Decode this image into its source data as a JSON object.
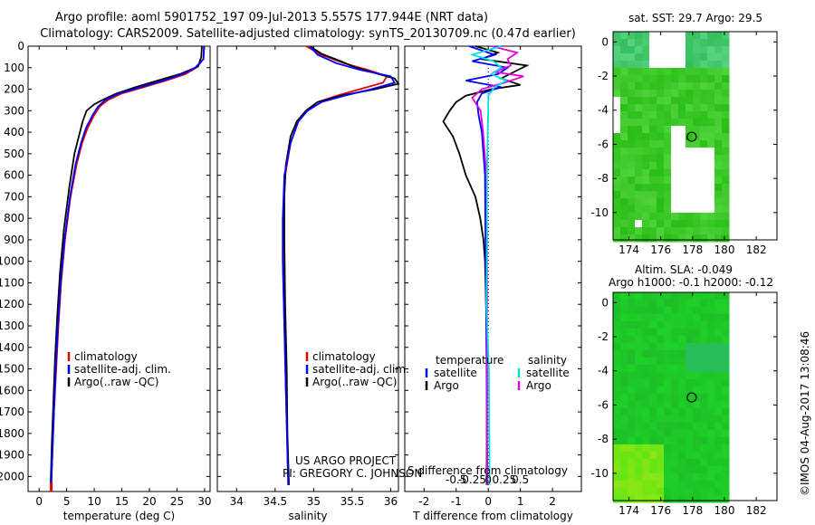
{
  "header": {
    "line1": "Argo profile: aoml 5901752_197 09-Jul-2013 5.557S 177.944E (NRT data)",
    "line2": "Climatology: CARS2009. Satellite-adjusted climatology: synTS_20130709.nc (0.47d earlier)"
  },
  "colors": {
    "climatology": "#e00000",
    "satellite": "#0000ff",
    "argo": "#000000",
    "sat_salinity": "#00e0e0",
    "argo_salinity": "#e000e0"
  },
  "chart_data": [
    {
      "type": "line",
      "name": "temperature-profile",
      "xlabel": "temperature (deg C)",
      "ylabel": "",
      "xlim": [
        -2,
        31
      ],
      "ylim": [
        2070,
        0
      ],
      "xticks": [
        "0",
        "5",
        "10",
        "15",
        "20",
        "25",
        "30"
      ],
      "xtick_values": [
        0,
        5,
        10,
        15,
        20,
        25,
        30
      ],
      "yticks": [
        "0",
        "100",
        "200",
        "300",
        "400",
        "500",
        "600",
        "700",
        "800",
        "900",
        "1000",
        "1100",
        "1200",
        "1300",
        "1400",
        "1500",
        "1600",
        "1700",
        "1800",
        "1900",
        "2000"
      ],
      "ytick_values": [
        0,
        100,
        200,
        300,
        400,
        500,
        600,
        700,
        800,
        900,
        1000,
        1100,
        1200,
        1300,
        1400,
        1500,
        1600,
        1700,
        1800,
        1900,
        2000
      ],
      "legend": [
        "climatology",
        "satellite-adj. clim.",
        "Argo(..raw -QC)"
      ],
      "series": [
        {
          "name": "climatology",
          "color": "#e00000",
          "depth": [
            0,
            60,
            100,
            130,
            160,
            190,
            220,
            250,
            280,
            320,
            380,
            450,
            550,
            700,
            900,
            1100,
            1300,
            1500,
            1700,
            1900,
            2040
          ],
          "values": [
            29.9,
            29.8,
            28.5,
            26.5,
            23,
            19,
            15,
            12.5,
            11,
            10,
            8.8,
            7.8,
            6.8,
            5.7,
            4.7,
            4,
            3.5,
            3.1,
            2.7,
            2.4,
            2.2
          ]
        },
        {
          "name": "satellite",
          "color": "#0000ff",
          "depth": [
            0,
            60,
            100,
            130,
            160,
            190,
            220,
            250,
            280,
            320,
            380,
            450,
            550,
            700,
            900,
            1100,
            1300,
            1500,
            1700,
            1900,
            2040
          ],
          "values": [
            29.9,
            29.8,
            28.3,
            26,
            22.5,
            18.5,
            14.5,
            12,
            10.7,
            9.7,
            8.5,
            7.6,
            6.6,
            5.6,
            4.6,
            3.9,
            3.4,
            3,
            2.7,
            2.4,
            2.2
          ]
        },
        {
          "name": "argo",
          "color": "#000000",
          "depth": [
            0,
            50,
            95,
            130,
            160,
            190,
            220,
            250,
            270,
            300,
            350,
            420,
            500,
            650,
            850,
            1050,
            1250,
            1450,
            1650,
            1850,
            2030
          ],
          "values": [
            29.5,
            29.4,
            28.8,
            25.5,
            21.5,
            17.5,
            14,
            11.5,
            10,
            8.6,
            7.9,
            7.2,
            6.4,
            5.5,
            4.5,
            3.8,
            3.3,
            2.9,
            2.6,
            2.3,
            2.1
          ]
        }
      ]
    },
    {
      "type": "line",
      "name": "salinity-profile",
      "xlabel": "salinity",
      "xlim": [
        33.75,
        36.1
      ],
      "ylim": [
        2070,
        0
      ],
      "xticks": [
        "34",
        "34.5",
        "35",
        "35.5",
        "36"
      ],
      "xtick_values": [
        34,
        34.5,
        35,
        35.5,
        36
      ],
      "legend": [
        "climatology",
        "satellite-adj. clim.",
        "Argo(..raw -QC)"
      ],
      "series": [
        {
          "name": "climatology",
          "color": "#e00000",
          "depth": [
            0,
            40,
            80,
            110,
            140,
            170,
            200,
            230,
            260,
            300,
            350,
            450,
            600,
            800,
            1000,
            1300,
            1600,
            2040
          ],
          "values": [
            34.9,
            35.1,
            35.4,
            35.7,
            35.95,
            35.9,
            35.6,
            35.3,
            35.05,
            34.9,
            34.8,
            34.7,
            34.63,
            34.6,
            34.6,
            34.62,
            34.64,
            34.67
          ]
        },
        {
          "name": "satellite",
          "color": "#0000ff",
          "depth": [
            0,
            40,
            80,
            110,
            140,
            170,
            200,
            230,
            260,
            300,
            350,
            450,
            600,
            800,
            1000,
            1300,
            1600,
            2040
          ],
          "values": [
            34.95,
            35.05,
            35.3,
            35.6,
            36.0,
            36.05,
            35.75,
            35.4,
            35.1,
            34.92,
            34.8,
            34.7,
            34.62,
            34.6,
            34.6,
            34.62,
            34.64,
            34.67
          ]
        },
        {
          "name": "argo",
          "color": "#000000",
          "depth": [
            0,
            35,
            70,
            100,
            120,
            150,
            175,
            200,
            230,
            260,
            300,
            350,
            420,
            550,
            700,
            900,
            1200,
            1500,
            1800,
            2040
          ],
          "values": [
            34.95,
            35.1,
            35.35,
            35.55,
            35.75,
            36.05,
            36.1,
            35.8,
            35.35,
            35.05,
            34.9,
            34.78,
            34.7,
            34.64,
            34.62,
            34.62,
            34.63,
            34.65,
            34.66,
            34.68
          ]
        }
      ]
    },
    {
      "type": "line",
      "name": "difference-profile",
      "xlabel": "T difference from climatology",
      "xlabel_top": "S difference from climatology",
      "xlim": [
        -2.6,
        2.9
      ],
      "ylim": [
        2070,
        0
      ],
      "xticks": [
        "-2",
        "-1",
        "0",
        "1",
        "2"
      ],
      "xtick_values": [
        -2,
        -1,
        0,
        1,
        2
      ],
      "xticks_s": [
        "-0.5",
        "-0.25",
        "0",
        "0.25",
        "0.5"
      ],
      "xtick_values_s": [
        -0.5,
        -0.25,
        0,
        0.25,
        0.5
      ],
      "legend_t_title": "temperature",
      "legend_s_title": "salinity",
      "legend": [
        "satellite",
        "Argo",
        "satellite",
        "Argo"
      ],
      "series": [
        {
          "name": "T satellite",
          "color": "#0000ff",
          "depth": [
            0,
            40,
            70,
            100,
            130,
            160,
            190,
            220,
            260,
            320,
            400,
            600,
            1000,
            1500,
            2040
          ],
          "values": [
            -0.6,
            0.2,
            -0.5,
            0.6,
            0.3,
            -0.7,
            0.4,
            -0.2,
            -0.35,
            -0.3,
            -0.2,
            -0.1,
            -0.08,
            -0.05,
            -0.03
          ]
        },
        {
          "name": "T argo",
          "color": "#000000",
          "depth": [
            0,
            30,
            60,
            90,
            120,
            150,
            180,
            200,
            230,
            260,
            300,
            350,
            420,
            500,
            600,
            700,
            800,
            900,
            1000,
            1300,
            1600,
            2040
          ],
          "values": [
            -0.4,
            0.3,
            -0.2,
            1.2,
            0.8,
            0.4,
            1.0,
            0.1,
            -0.7,
            -1.0,
            -1.2,
            -1.4,
            -1.1,
            -0.9,
            -0.7,
            -0.4,
            -0.25,
            -0.15,
            -0.1,
            -0.05,
            -0.04,
            -0.05
          ]
        },
        {
          "name": "S satellite",
          "color": "#00e0e0",
          "depth": [
            0,
            40,
            70,
            100,
            130,
            160,
            190,
            230,
            300,
            400,
            600,
            900,
            1200,
            1500,
            2040
          ],
          "values": [
            0.2,
            -0.25,
            0.08,
            0.2,
            0.05,
            0.28,
            0.1,
            0.0,
            0.0,
            -0.01,
            -0.02,
            -0.02,
            -0.03,
            0.01,
            0.02
          ]
        },
        {
          "name": "S argo",
          "color": "#e000e0",
          "depth": [
            0,
            30,
            60,
            90,
            120,
            140,
            170,
            200,
            240,
            300,
            400,
            600,
            900,
            1200,
            1600,
            2040
          ],
          "values": [
            0.05,
            0.45,
            0.3,
            0.35,
            0.1,
            0.55,
            0.25,
            -0.1,
            -0.25,
            -0.12,
            -0.08,
            -0.03,
            -0.02,
            -0.02,
            -0.02,
            -0.02
          ]
        }
      ],
      "footer_line1": "US ARGO PROJECT",
      "footer_line2": "PI: GREGORY C. JOHNSON"
    },
    {
      "type": "heatmap",
      "name": "sst-map",
      "title": "sat. SST: 29.7  Argo: 29.5",
      "xlim": [
        173,
        183.3
      ],
      "ylim": [
        -11.6,
        0.6
      ],
      "xticks": [
        "174",
        "176",
        "178",
        "180",
        "182"
      ],
      "xtick_values": [
        174,
        176,
        178,
        180,
        182
      ],
      "yticks": [
        "0",
        "-2",
        "-4",
        "-6",
        "-8",
        "-10"
      ],
      "ytick_values": [
        0,
        -2,
        -4,
        -6,
        -8,
        -10
      ],
      "marker": {
        "lon": 177.944,
        "lat": -5.557
      }
    },
    {
      "type": "heatmap",
      "name": "sla-map",
      "title": "Altim. SLA: -0.049",
      "subtitle": "Argo h1000: -0.1 h2000: -0.12",
      "xlim": [
        173,
        183.3
      ],
      "ylim": [
        -11.6,
        0.6
      ],
      "xticks": [
        "174",
        "176",
        "178",
        "180",
        "182"
      ],
      "xtick_values": [
        174,
        176,
        178,
        180,
        182
      ],
      "yticks": [
        "0",
        "-2",
        "-4",
        "-6",
        "-8",
        "-10"
      ],
      "ytick_values": [
        0,
        -2,
        -4,
        -6,
        -8,
        -10
      ],
      "marker": {
        "lon": 177.944,
        "lat": -5.557
      }
    }
  ],
  "watermark": "©IMOS 04-Aug-2017 13:08:46"
}
